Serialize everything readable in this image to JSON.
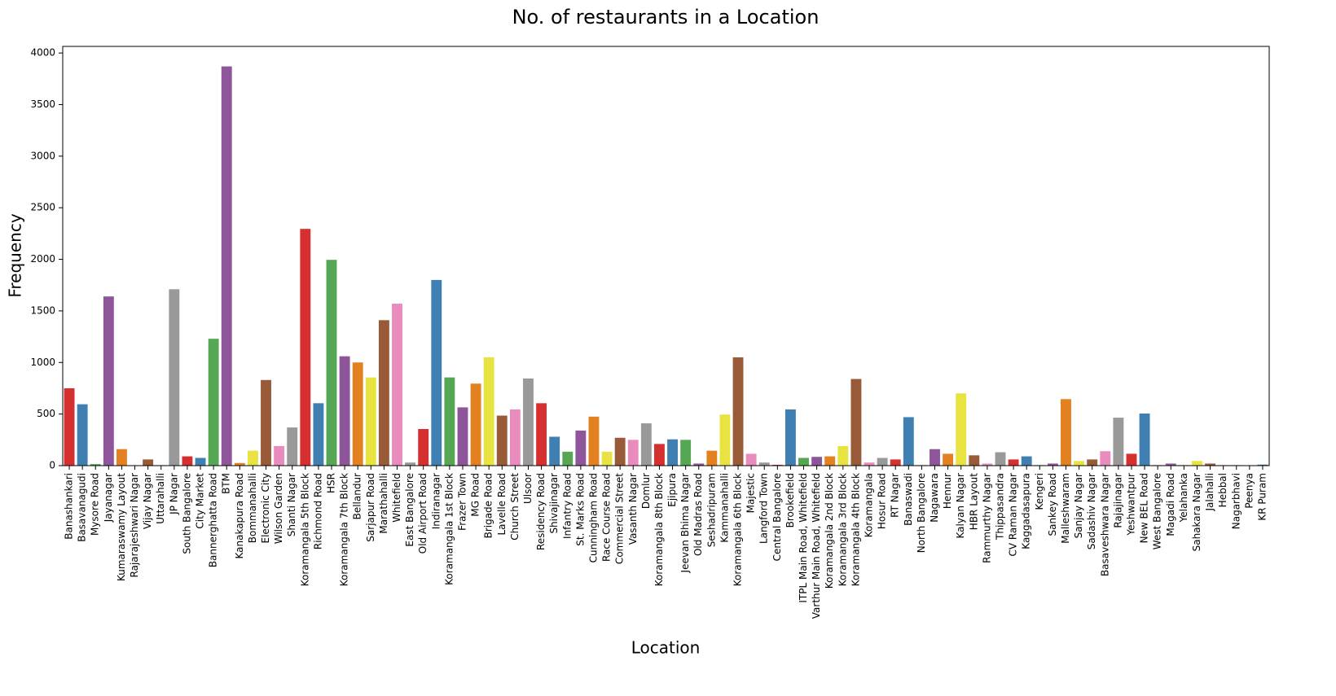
{
  "chart_data": {
    "type": "bar",
    "title": "No. of restaurants in a Location",
    "x_label": "Location",
    "y_label": "Frequency",
    "categories": [
      "Banashankari",
      "Basavanagudi",
      "Mysore Road",
      "Jayanagar",
      "Kumaraswamy Layout",
      "Rajarajeshwari Nagar",
      "Vijay Nagar",
      "Uttarahalli",
      "JP Nagar",
      "South Bangalore",
      "City Market",
      "Bannerghatta Road",
      "BTM",
      "Kanakapura Road",
      "Bommanahalli",
      "Electronic City",
      "Wilson Garden",
      "Shanti Nagar",
      "Koramangala 5th Block",
      "Richmond Road",
      "HSR",
      "Koramangala 7th Block",
      "Bellandur",
      "Sarjapur Road",
      "Marathahalli",
      "Whitefield",
      "East Bangalore",
      "Old Airport Road",
      "Indiranagar",
      "Koramangala 1st Block",
      "Frazer Town",
      "MG Road",
      "Brigade Road",
      "Lavelle Road",
      "Church Street",
      "Ulsoor",
      "Residency Road",
      "Shivajinagar",
      "Infantry Road",
      "St. Marks Road",
      "Cunningham Road",
      "Race Course Road",
      "Commercial Street",
      "Vasanth Nagar",
      "Domlur",
      "Koramangala 8th Block",
      "Ejipura",
      "Jeevan Bhima Nagar",
      "Old Madras Road",
      "Seshadripuram",
      "Kammanahalli",
      "Koramangala 6th Block",
      "Majestic",
      "Langford Town",
      "Central Bangalore",
      "Brookefield",
      "ITPL Main Road, Whitefield",
      "Varthur Main Road, Whitefield",
      "Koramangala 2nd Block",
      "Koramangala 3rd Block",
      "Koramangala 4th Block",
      "Koramangala",
      "Hosur Road",
      "RT Nagar",
      "Banaswadi",
      "North Bangalore",
      "Nagawara",
      "Hennur",
      "Kalyan Nagar",
      "HBR Layout",
      "Rammurthy Nagar",
      "Thippasandra",
      "CV Raman Nagar",
      "Kaggadasapura",
      "Kengeri",
      "Sankey Road",
      "Malleshwaram",
      "Sanjay Nagar",
      "Sadashiv Nagar",
      "Basaveshwara Nagar",
      "Rajajinagar",
      "Yeshwantpur",
      "New BEL Road",
      "West Bangalore",
      "Magadi Road",
      "Yelahanka",
      "Sahakara Nagar",
      "Jalahalli",
      "Hebbal",
      "Nagarbhavi",
      "Peenya",
      "KR Puram"
    ],
    "values": [
      750,
      595,
      15,
      1640,
      160,
      3,
      60,
      5,
      1710,
      90,
      75,
      1230,
      3870,
      25,
      145,
      830,
      190,
      370,
      2295,
      605,
      1995,
      1060,
      1000,
      855,
      1410,
      1570,
      30,
      355,
      1800,
      855,
      565,
      795,
      1050,
      485,
      545,
      845,
      605,
      280,
      135,
      340,
      475,
      135,
      270,
      250,
      410,
      210,
      255,
      250,
      20,
      145,
      495,
      1050,
      115,
      30,
      8,
      545,
      75,
      85,
      90,
      190,
      840,
      30,
      75,
      60,
      470,
      5,
      160,
      115,
      700,
      100,
      20,
      130,
      60,
      90,
      5,
      20,
      645,
      45,
      60,
      140,
      465,
      115,
      505,
      5,
      20,
      5,
      45,
      20,
      5,
      5,
      3,
      10
    ],
    "palette": [
      "#d62f30",
      "#3f7fb1",
      "#56a754",
      "#8e559b",
      "#e3801f",
      "#e8e340",
      "#985a37",
      "#ea8bbe",
      "#999999"
    ],
    "ylim": [
      0,
      4064
    ],
    "yticks": [
      0,
      500,
      1000,
      1500,
      2000,
      2500,
      3000,
      3500,
      4000
    ]
  }
}
